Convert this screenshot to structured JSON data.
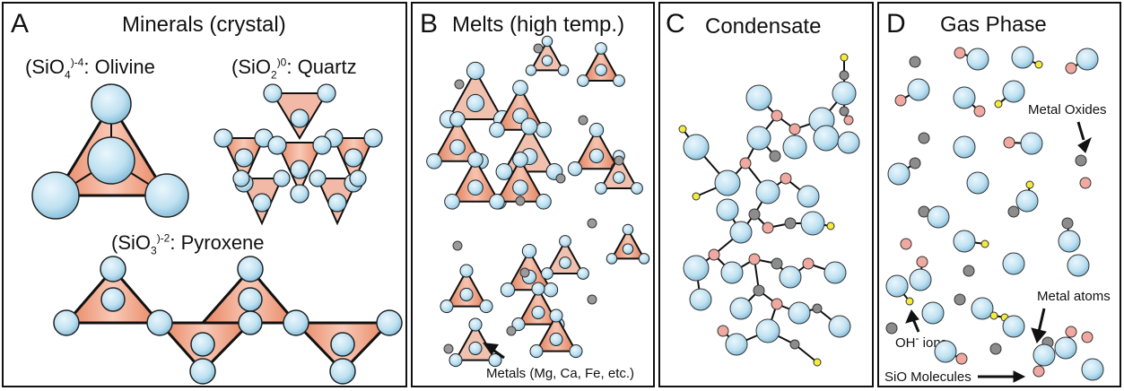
{
  "colors": {
    "atom_blue": "#bfe1f1",
    "atom_pink": "#f0a9a0",
    "atom_gray": "#8c8c8c",
    "atom_yellow": "#f4ec3a",
    "tetra_orange": "#e8835e"
  },
  "panels": {
    "a": {
      "letter": "A",
      "title": "Minerals (crystal)",
      "olivine": {
        "formula": "(SiO",
        "sub": "4",
        "sup": ")-4",
        "name": ": Olivine"
      },
      "quartz": {
        "formula": "(SiO",
        "sub": "2",
        "sup": ")0",
        "name": ": Quartz"
      },
      "pyroxene": {
        "formula": "(SiO",
        "sub": "3",
        "sup": ")-2",
        "name": ": Pyroxene"
      }
    },
    "b": {
      "letter": "B",
      "title": "Melts (high temp.)",
      "metals_note": "Metals (Mg, Ca, Fe, etc.)"
    },
    "c": {
      "letter": "C",
      "title": "Condensate"
    },
    "d": {
      "letter": "D",
      "title": "Gas Phase",
      "metal_oxides": "Metal Oxides",
      "metal_atoms": "Metal atoms",
      "oh_ions": "OH",
      "oh_sup": "-",
      "oh_rest": " ions",
      "sio": "SiO Molecules"
    }
  }
}
